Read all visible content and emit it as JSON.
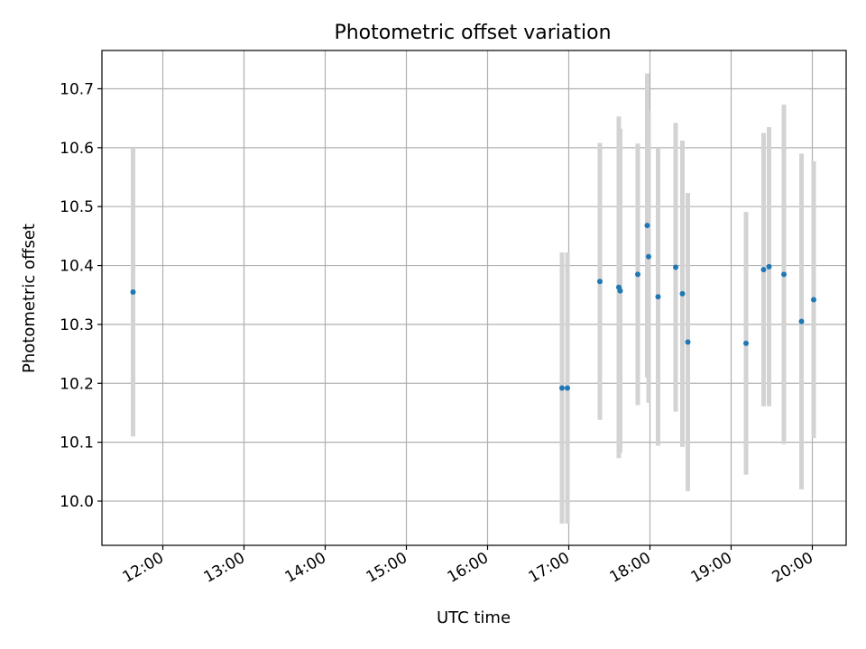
{
  "chart_data": {
    "type": "scatter",
    "title": "Photometric offset variation",
    "xlabel": "UTC time",
    "ylabel": "Photometric offset",
    "x_tick_labels": [
      "12:00",
      "13:00",
      "14:00",
      "15:00",
      "16:00",
      "17:00",
      "18:00",
      "19:00",
      "20:00"
    ],
    "y_tick_labels": [
      "10.0",
      "10.1",
      "10.2",
      "10.3",
      "10.4",
      "10.5",
      "10.6",
      "10.7"
    ],
    "xlim": [
      "11:15",
      "20:25"
    ],
    "ylim": [
      9.925,
      10.765
    ],
    "grid": true,
    "marker_color": "#1f77b4",
    "errorbar_color": "#d3d3d3",
    "points": [
      {
        "time": "11:38",
        "y": 10.355,
        "yerr": 0.245
      },
      {
        "time": "16:55",
        "y": 10.192,
        "yerr": 0.23
      },
      {
        "time": "16:59",
        "y": 10.192,
        "yerr": 0.23
      },
      {
        "time": "17:23",
        "y": 10.373,
        "yerr": 0.235
      },
      {
        "time": "17:37",
        "y": 10.363,
        "yerr": 0.29
      },
      {
        "time": "17:38",
        "y": 10.357,
        "yerr": 0.275
      },
      {
        "time": "17:51",
        "y": 10.385,
        "yerr": 0.222
      },
      {
        "time": "17:58",
        "y": 10.468,
        "yerr": 0.258
      },
      {
        "time": "17:59",
        "y": 10.415,
        "yerr": 0.248
      },
      {
        "time": "18:06",
        "y": 10.347,
        "yerr": 0.253
      },
      {
        "time": "18:19",
        "y": 10.397,
        "yerr": 0.245
      },
      {
        "time": "18:24",
        "y": 10.352,
        "yerr": 0.26
      },
      {
        "time": "18:28",
        "y": 10.27,
        "yerr": 0.253
      },
      {
        "time": "19:11",
        "y": 10.268,
        "yerr": 0.223
      },
      {
        "time": "19:24",
        "y": 10.393,
        "yerr": 0.232
      },
      {
        "time": "19:28",
        "y": 10.398,
        "yerr": 0.237
      },
      {
        "time": "19:39",
        "y": 10.385,
        "yerr": 0.288
      },
      {
        "time": "19:52",
        "y": 10.305,
        "yerr": 0.285
      },
      {
        "time": "20:01",
        "y": 10.342,
        "yerr": 0.235
      }
    ]
  }
}
